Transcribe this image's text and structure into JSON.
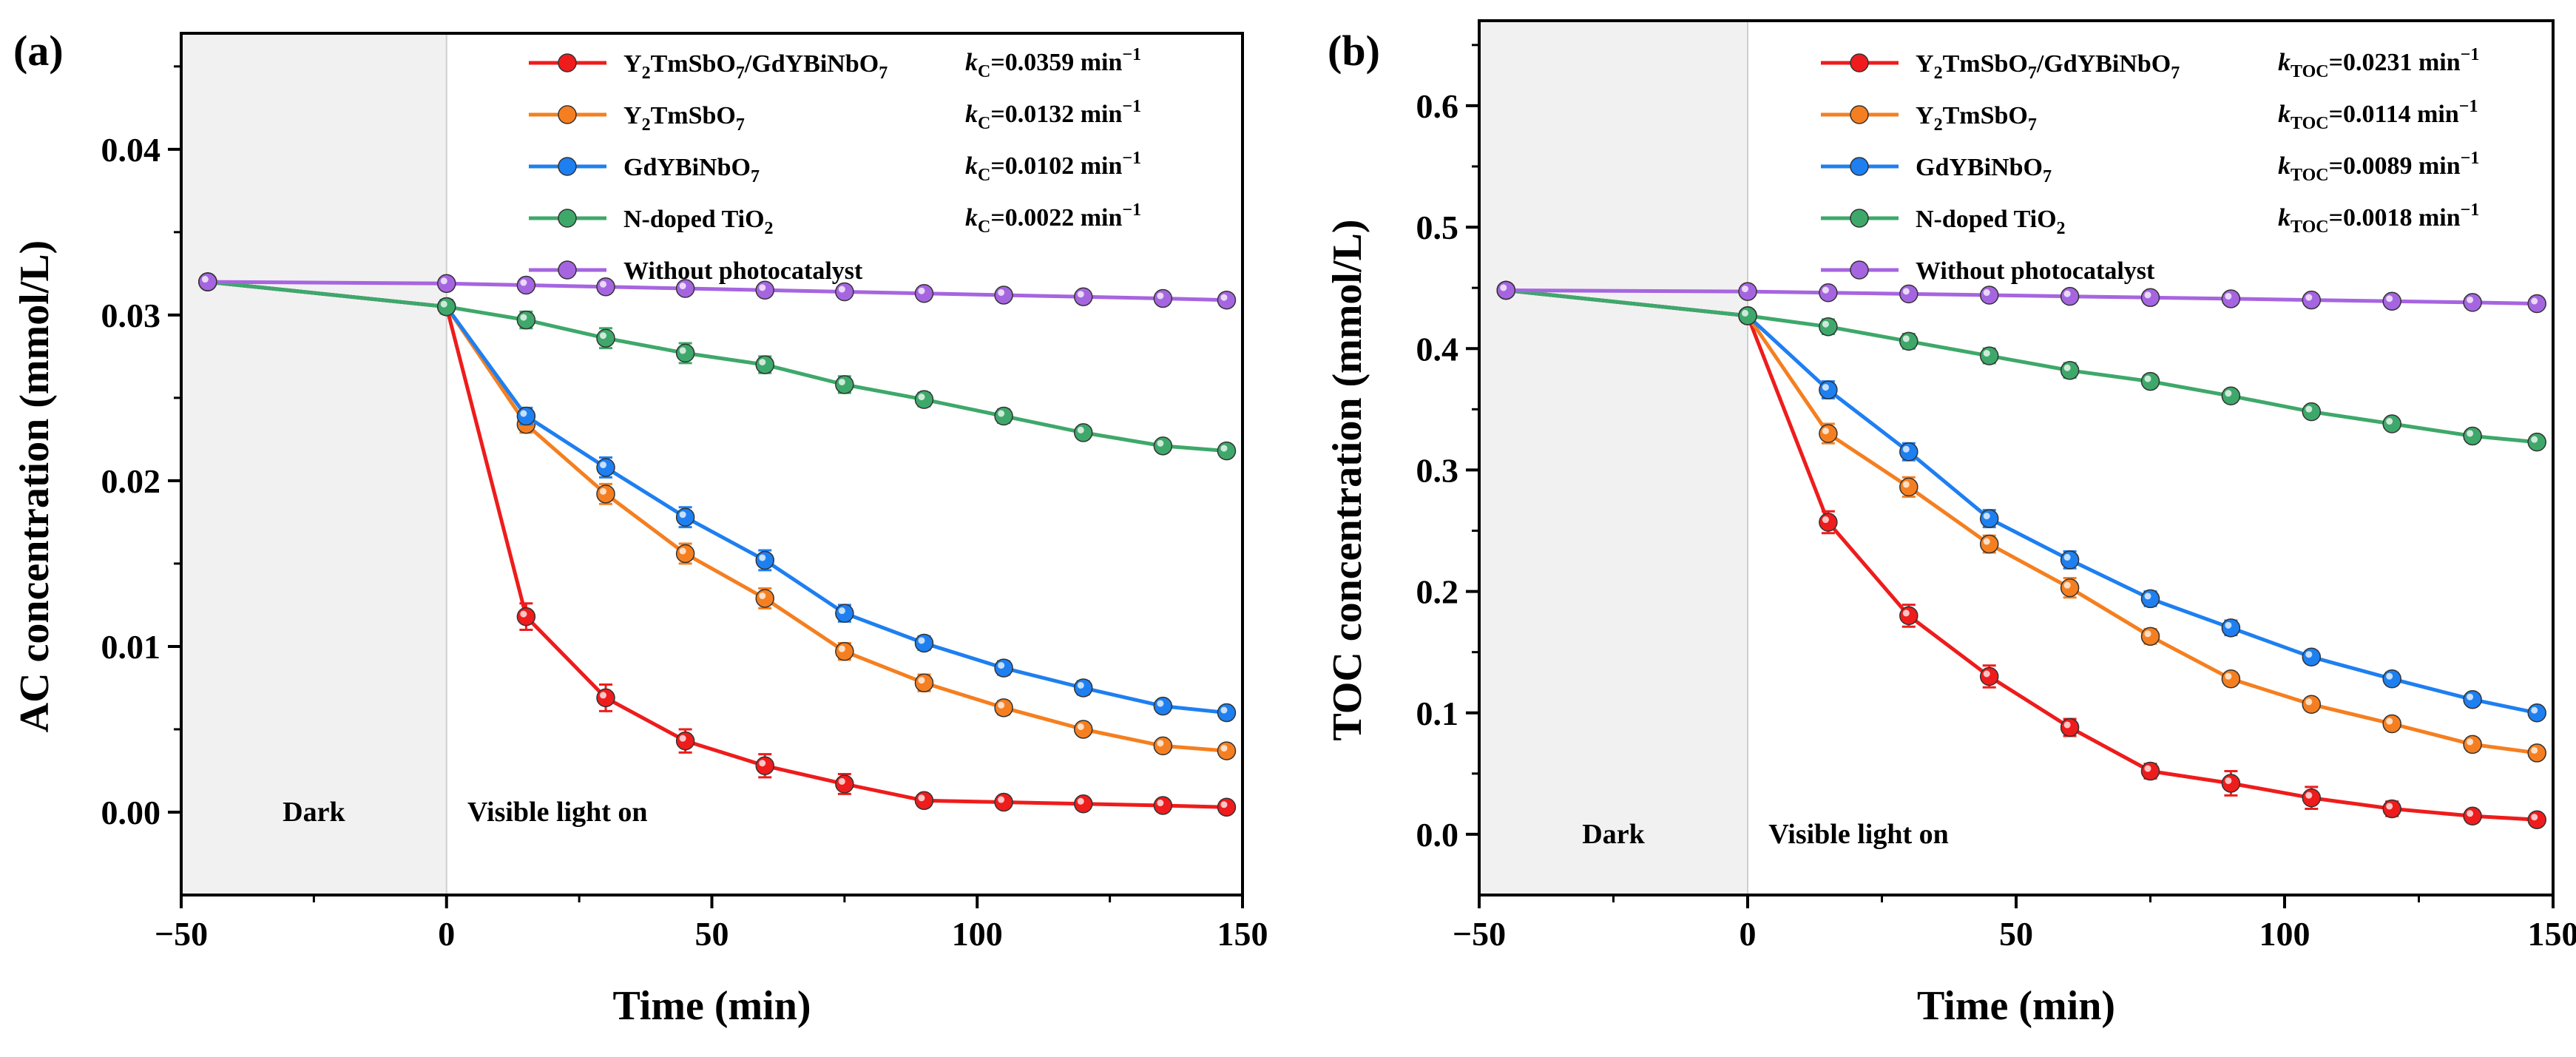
{
  "chart_data": [
    {
      "type": "line",
      "panel_label": "(a)",
      "xlabel": "Time (min)",
      "ylabel": "AC concentration (mmol/L)",
      "xlim": [
        -50,
        150
      ],
      "ylim": [
        -0.005,
        0.047
      ],
      "xticks": [
        -50,
        0,
        50,
        100,
        150
      ],
      "xtick_labels": [
        "−50",
        "0",
        "50",
        "100",
        "150"
      ],
      "yticks": [
        0.0,
        0.01,
        0.02,
        0.03,
        0.04
      ],
      "ytick_labels": [
        "0.00",
        "0.01",
        "0.02",
        "0.03",
        "0.04"
      ],
      "regions": [
        {
          "label": "Dark",
          "x_from": -50,
          "x_to": 0,
          "shaded": true
        },
        {
          "label": "Visible light on",
          "x_from": 0,
          "x_to": 150,
          "shaded": false
        }
      ],
      "x": [
        -45,
        0,
        15,
        30,
        45,
        60,
        75,
        90,
        105,
        120,
        135,
        147
      ],
      "series": [
        {
          "name": "Y2TmSbO7/GdYBiNbO7",
          "name_parts": [
            [
              "Y",
              ""
            ],
            [
              "2",
              "sub"
            ],
            [
              "TmSbO",
              ""
            ],
            [
              "7",
              "sub"
            ],
            [
              "/GdYBiNbO",
              ""
            ],
            [
              "7",
              "sub"
            ]
          ],
          "rate_symbol": "k",
          "rate_subscript": "C",
          "rate_value": "=0.0359 min",
          "rate_exp": "−1",
          "color": "#ee1c1c",
          "values": [
            0.032,
            0.0305,
            0.0118,
            0.0069,
            0.0043,
            0.0028,
            0.0017,
            0.0007,
            0.0006,
            0.0005,
            0.0004,
            0.0003
          ],
          "errors": [
            0.0002,
            0.0004,
            0.0008,
            0.0008,
            0.0007,
            0.0007,
            0.0006,
            0.0003,
            0.0003,
            0.0002,
            0.0002,
            0.0002
          ]
        },
        {
          "name": "Y2TmSbO7",
          "name_parts": [
            [
              "Y",
              ""
            ],
            [
              "2",
              "sub"
            ],
            [
              "TmSbO",
              ""
            ],
            [
              "7",
              "sub"
            ]
          ],
          "rate_symbol": "k",
          "rate_subscript": "C",
          "rate_value": "=0.0132 min",
          "rate_exp": "−1",
          "color": "#f57f20",
          "values": [
            0.032,
            0.0305,
            0.0234,
            0.0192,
            0.0156,
            0.0129,
            0.0097,
            0.0078,
            0.0063,
            0.005,
            0.004,
            0.0037
          ],
          "errors": [
            0.0002,
            0.0004,
            0.0005,
            0.0006,
            0.0006,
            0.0006,
            0.0005,
            0.0005,
            0.0004,
            0.0003,
            0.0003,
            0.0003
          ]
        },
        {
          "name": "GdYBiNbO7",
          "name_parts": [
            [
              "GdYBiNbO",
              ""
            ],
            [
              "7",
              "sub"
            ]
          ],
          "rate_symbol": "k",
          "rate_subscript": "C",
          "rate_value": "=0.0102 min",
          "rate_exp": "−1",
          "color": "#1e7ff0",
          "values": [
            0.032,
            0.0305,
            0.0239,
            0.0208,
            0.0178,
            0.0152,
            0.012,
            0.0102,
            0.0087,
            0.0075,
            0.0064,
            0.006
          ],
          "errors": [
            0.0002,
            0.0004,
            0.0005,
            0.0006,
            0.0006,
            0.0006,
            0.0005,
            0.0004,
            0.0004,
            0.0004,
            0.0003,
            0.0003
          ]
        },
        {
          "name": "N-doped TiO2",
          "name_parts": [
            [
              "N-doped TiO",
              ""
            ],
            [
              "2",
              "sub"
            ]
          ],
          "rate_symbol": "k",
          "rate_subscript": "C",
          "rate_value": "=0.0022 min",
          "rate_exp": "−1",
          "color": "#3ea86a",
          "values": [
            0.032,
            0.0305,
            0.0297,
            0.0286,
            0.0277,
            0.027,
            0.0258,
            0.0249,
            0.0239,
            0.0229,
            0.0221,
            0.0218
          ],
          "errors": [
            0.0002,
            0.0004,
            0.0005,
            0.0006,
            0.0006,
            0.0005,
            0.0005,
            0.0004,
            0.0004,
            0.0003,
            0.0003,
            0.0003
          ]
        },
        {
          "name": "Without photocatalyst",
          "name_parts": [
            [
              "Without photocatalyst",
              ""
            ]
          ],
          "rate_symbol": "",
          "rate_subscript": "",
          "rate_value": "",
          "rate_exp": "",
          "color": "#a665e0",
          "values": [
            0.032,
            0.0319,
            0.0318,
            0.0317,
            0.0316,
            0.0315,
            0.0314,
            0.0313,
            0.0312,
            0.0311,
            0.031,
            0.0309
          ],
          "errors": [
            0.0002,
            0.0002,
            0.0002,
            0.0002,
            0.0002,
            0.0002,
            0.0002,
            0.0002,
            0.0002,
            0.0002,
            0.0002,
            0.0002
          ]
        }
      ]
    },
    {
      "type": "line",
      "panel_label": "(b)",
      "xlabel": "Time (min)",
      "ylabel": "TOC concentration (mmol/L)",
      "xlim": [
        -50,
        150
      ],
      "ylim": [
        -0.05,
        0.67
      ],
      "xticks": [
        -50,
        0,
        50,
        100,
        150
      ],
      "xtick_labels": [
        "−50",
        "0",
        "50",
        "100",
        "150"
      ],
      "yticks": [
        0.0,
        0.1,
        0.2,
        0.3,
        0.4,
        0.5,
        0.6
      ],
      "ytick_labels": [
        "0.0",
        "0.1",
        "0.2",
        "0.3",
        "0.4",
        "0.5",
        "0.6"
      ],
      "regions": [
        {
          "label": "Dark",
          "x_from": -50,
          "x_to": 0,
          "shaded": true
        },
        {
          "label": "Visible light on",
          "x_from": 0,
          "x_to": 150,
          "shaded": false
        }
      ],
      "x": [
        -45,
        0,
        15,
        30,
        45,
        60,
        75,
        90,
        105,
        120,
        135,
        147
      ],
      "series": [
        {
          "name": "Y2TmSbO7/GdYBiNbO7",
          "name_parts": [
            [
              "Y",
              ""
            ],
            [
              "2",
              "sub"
            ],
            [
              "TmSbO",
              ""
            ],
            [
              "7",
              "sub"
            ],
            [
              "/GdYBiNbO",
              ""
            ],
            [
              "7",
              "sub"
            ]
          ],
          "rate_symbol": "k",
          "rate_subscript": "TOC",
          "rate_value": "=0.0231 min",
          "rate_exp": "−1",
          "color": "#ee1c1c",
          "values": [
            0.448,
            0.427,
            0.257,
            0.18,
            0.13,
            0.088,
            0.052,
            0.042,
            0.03,
            0.021,
            0.015,
            0.012
          ],
          "errors": [
            0.003,
            0.005,
            0.009,
            0.009,
            0.009,
            0.007,
            0.006,
            0.01,
            0.009,
            0.006,
            0.005,
            0.004
          ]
        },
        {
          "name": "Y2TmSbO7",
          "name_parts": [
            [
              "Y",
              ""
            ],
            [
              "2",
              "sub"
            ],
            [
              "TmSbO",
              ""
            ],
            [
              "7",
              "sub"
            ]
          ],
          "rate_symbol": "k",
          "rate_subscript": "TOC",
          "rate_value": "=0.0114 min",
          "rate_exp": "−1",
          "color": "#f57f20",
          "values": [
            0.448,
            0.427,
            0.33,
            0.286,
            0.239,
            0.203,
            0.163,
            0.128,
            0.107,
            0.091,
            0.074,
            0.067
          ],
          "errors": [
            0.003,
            0.005,
            0.008,
            0.008,
            0.007,
            0.008,
            0.006,
            0.005,
            0.005,
            0.005,
            0.005,
            0.004
          ]
        },
        {
          "name": "GdYBiNbO7",
          "name_parts": [
            [
              "GdYBiNbO",
              ""
            ],
            [
              "7",
              "sub"
            ]
          ],
          "rate_symbol": "k",
          "rate_subscript": "TOC",
          "rate_value": "=0.0089 min",
          "rate_exp": "−1",
          "color": "#1e7ff0",
          "values": [
            0.448,
            0.427,
            0.366,
            0.315,
            0.26,
            0.226,
            0.194,
            0.17,
            0.146,
            0.128,
            0.111,
            0.1
          ],
          "errors": [
            0.003,
            0.005,
            0.007,
            0.007,
            0.007,
            0.007,
            0.006,
            0.006,
            0.005,
            0.005,
            0.004,
            0.004
          ]
        },
        {
          "name": "N-doped TiO2",
          "name_parts": [
            [
              "N-doped TiO",
              ""
            ],
            [
              "2",
              "sub"
            ]
          ],
          "rate_symbol": "k",
          "rate_subscript": "TOC",
          "rate_value": "=0.0018 min",
          "rate_exp": "−1",
          "color": "#3ea86a",
          "values": [
            0.448,
            0.427,
            0.418,
            0.406,
            0.394,
            0.382,
            0.373,
            0.361,
            0.348,
            0.338,
            0.328,
            0.323
          ],
          "errors": [
            0.003,
            0.005,
            0.006,
            0.006,
            0.006,
            0.006,
            0.005,
            0.005,
            0.004,
            0.004,
            0.004,
            0.004
          ]
        },
        {
          "name": "Without photocatalyst",
          "name_parts": [
            [
              "Without photocatalyst",
              ""
            ]
          ],
          "rate_symbol": "",
          "rate_subscript": "",
          "rate_value": "",
          "rate_exp": "",
          "color": "#a665e0",
          "values": [
            0.448,
            0.447,
            0.446,
            0.445,
            0.444,
            0.443,
            0.442,
            0.441,
            0.44,
            0.439,
            0.438,
            0.437
          ],
          "errors": [
            0.003,
            0.003,
            0.003,
            0.003,
            0.003,
            0.003,
            0.003,
            0.003,
            0.003,
            0.003,
            0.003,
            0.003
          ]
        }
      ]
    }
  ]
}
